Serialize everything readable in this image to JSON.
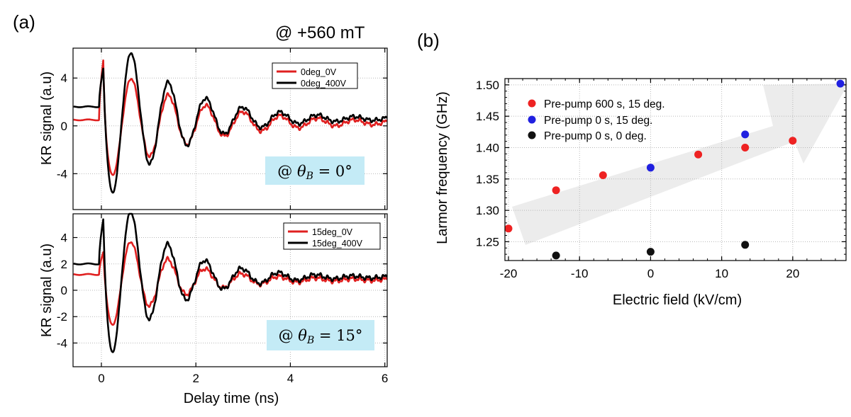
{
  "figure": {
    "label_a": "(a)",
    "label_b": "(b)",
    "field_annotation": "@ +560 mT"
  },
  "chart_data": [
    {
      "type": "line",
      "panel": "a-top",
      "ylabel": "KR signal (a.u)",
      "xlim": [
        -0.6,
        6.05
      ],
      "ylim": [
        -7,
        6.5
      ],
      "xticks": [
        0,
        2,
        4,
        6
      ],
      "yticks": [
        -4,
        0,
        4
      ],
      "annotation": "@ θB = 0°",
      "legend_position": "top-right",
      "series": [
        {
          "name": "0deg_0V",
          "color": "#e02020",
          "baseline": 0.5,
          "peak": 5.8,
          "amp": -5.1,
          "tau": 1.7,
          "freq": 1.27,
          "phase": 2.02,
          "offset": 0.28
        },
        {
          "name": "0deg_400V",
          "color": "#000000",
          "baseline": 1.6,
          "peak": 5.0,
          "amp": -7.9,
          "tau": 1.4,
          "freq": 1.27,
          "phase": 2.02,
          "offset": 0.6
        }
      ]
    },
    {
      "type": "line",
      "panel": "a-bottom",
      "ylabel": "KR signal (a.u)",
      "xlabel": "Delay time (ns)",
      "xlim": [
        -0.6,
        6.05
      ],
      "ylim": [
        -5.8,
        5.8
      ],
      "xticks": [
        0,
        2,
        4,
        6
      ],
      "xticklabels": [
        "0",
        "2",
        "4",
        "6"
      ],
      "yticks": [
        -4,
        -2,
        0,
        2,
        4
      ],
      "annotation": "@ θB = 15°",
      "legend_position": "top-right",
      "series": [
        {
          "name": "15deg_0V",
          "color": "#e02020",
          "baseline": 1.2,
          "peak": 3.0,
          "amp": -4.3,
          "tau": 1.3,
          "freq": 1.28,
          "phase": 2.02,
          "offset": 0.8
        },
        {
          "name": "15deg_400V",
          "color": "#000000",
          "baseline": 2.0,
          "peak": 5.6,
          "amp": -7.5,
          "tau": 1.2,
          "freq": 1.28,
          "phase": 2.02,
          "offset": 1.0
        }
      ]
    },
    {
      "type": "scatter",
      "panel": "b",
      "xlabel": "Electric field (kV/cm)",
      "ylabel": "Larmor frequency (GHz)",
      "xlim": [
        -20.5,
        27.5
      ],
      "ylim": [
        1.22,
        1.51
      ],
      "xticks": [
        -20,
        -10,
        0,
        10,
        20
      ],
      "yticks": [
        1.25,
        1.3,
        1.35,
        1.4,
        1.45,
        1.5
      ],
      "yticklabels": [
        "1.25",
        "1.30",
        "1.35",
        "1.40",
        "1.45",
        "1.50"
      ],
      "legend_position": "top-left",
      "series": [
        {
          "name": "Pre-pump 600 s, 15 deg.",
          "color": "#ee2222",
          "x": [
            -20,
            -13.3,
            -6.7,
            6.7,
            13.3,
            20
          ],
          "y": [
            1.271,
            1.332,
            1.356,
            1.389,
            1.4,
            1.411
          ]
        },
        {
          "name": "Pre-pump 0 s, 15 deg.",
          "color": "#2020e0",
          "x": [
            0,
            13.3,
            26.7
          ],
          "y": [
            1.368,
            1.421,
            1.502
          ]
        },
        {
          "name": "Pre-pump 0 s, 0 deg.",
          "color": "#111111",
          "x": [
            -13.3,
            0,
            13.3
          ],
          "y": [
            1.228,
            1.234,
            1.245
          ]
        }
      ]
    }
  ]
}
